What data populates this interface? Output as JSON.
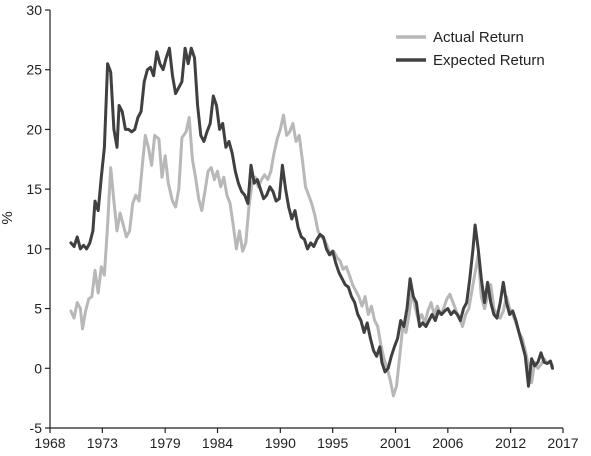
{
  "chart_data": {
    "type": "line",
    "title": "",
    "xlabel": "",
    "ylabel": "%",
    "xlim": [
      1968,
      2017
    ],
    "ylim": [
      -5,
      30
    ],
    "x_ticks": [
      1968,
      1973,
      1979,
      1984,
      1990,
      1995,
      2001,
      2006,
      2012,
      2017
    ],
    "y_ticks": [
      -5,
      0,
      5,
      10,
      15,
      20,
      25,
      30
    ],
    "grid": false,
    "legend": "top-right",
    "colors": {
      "actual": "#b8b8b8",
      "expected": "#404040",
      "axis": "#222222"
    },
    "series": [
      {
        "name": "Actual Return",
        "points": [
          [
            1970.0,
            4.8
          ],
          [
            1970.3,
            4.2
          ],
          [
            1970.6,
            5.5
          ],
          [
            1970.9,
            5.0
          ],
          [
            1971.1,
            3.3
          ],
          [
            1971.4,
            4.8
          ],
          [
            1971.7,
            5.8
          ],
          [
            1972.0,
            6.0
          ],
          [
            1972.3,
            8.2
          ],
          [
            1972.6,
            6.3
          ],
          [
            1972.9,
            8.5
          ],
          [
            1973.2,
            7.8
          ],
          [
            1973.5,
            12.0
          ],
          [
            1973.8,
            16.8
          ],
          [
            1974.1,
            14.0
          ],
          [
            1974.4,
            11.5
          ],
          [
            1974.7,
            13.0
          ],
          [
            1975.0,
            12.0
          ],
          [
            1975.3,
            11.0
          ],
          [
            1975.6,
            11.5
          ],
          [
            1975.9,
            13.8
          ],
          [
            1976.2,
            14.5
          ],
          [
            1976.5,
            14.0
          ],
          [
            1976.8,
            16.8
          ],
          [
            1977.1,
            19.5
          ],
          [
            1977.4,
            18.5
          ],
          [
            1977.7,
            17.0
          ],
          [
            1978.0,
            19.5
          ],
          [
            1978.4,
            19.2
          ],
          [
            1978.7,
            16.0
          ],
          [
            1979.0,
            17.8
          ],
          [
            1979.3,
            15.5
          ],
          [
            1979.7,
            14.0
          ],
          [
            1980.0,
            13.5
          ],
          [
            1980.3,
            15.0
          ],
          [
            1980.6,
            19.3
          ],
          [
            1981.0,
            19.8
          ],
          [
            1981.3,
            21.0
          ],
          [
            1981.6,
            17.5
          ],
          [
            1981.9,
            16.0
          ],
          [
            1982.2,
            14.2
          ],
          [
            1982.5,
            13.2
          ],
          [
            1982.8,
            14.8
          ],
          [
            1983.1,
            16.5
          ],
          [
            1983.4,
            16.8
          ],
          [
            1983.7,
            15.8
          ],
          [
            1984.0,
            16.5
          ],
          [
            1984.3,
            15.2
          ],
          [
            1984.6,
            16.0
          ],
          [
            1984.9,
            14.5
          ],
          [
            1985.2,
            13.8
          ],
          [
            1985.5,
            12.0
          ],
          [
            1985.8,
            10.0
          ],
          [
            1986.1,
            11.5
          ],
          [
            1986.4,
            9.8
          ],
          [
            1986.7,
            10.5
          ],
          [
            1987.0,
            13.5
          ],
          [
            1987.3,
            15.5
          ],
          [
            1987.6,
            16.0
          ],
          [
            1987.9,
            15.2
          ],
          [
            1988.2,
            15.8
          ],
          [
            1988.5,
            16.2
          ],
          [
            1988.8,
            15.8
          ],
          [
            1989.1,
            16.5
          ],
          [
            1989.4,
            18.0
          ],
          [
            1989.7,
            19.2
          ],
          [
            1990.0,
            20.0
          ],
          [
            1990.3,
            21.2
          ],
          [
            1990.6,
            19.5
          ],
          [
            1990.9,
            19.8
          ],
          [
            1991.2,
            20.5
          ],
          [
            1991.5,
            19.0
          ],
          [
            1991.8,
            19.5
          ],
          [
            1992.1,
            17.5
          ],
          [
            1992.4,
            15.2
          ],
          [
            1992.7,
            14.5
          ],
          [
            1993.0,
            13.8
          ],
          [
            1993.3,
            12.8
          ],
          [
            1993.6,
            11.5
          ],
          [
            1993.9,
            11.0
          ],
          [
            1994.2,
            10.8
          ],
          [
            1994.5,
            10.2
          ],
          [
            1994.8,
            9.5
          ],
          [
            1995.1,
            9.8
          ],
          [
            1995.4,
            9.3
          ],
          [
            1995.7,
            9.0
          ],
          [
            1996.0,
            8.3
          ],
          [
            1996.3,
            8.5
          ],
          [
            1996.6,
            7.8
          ],
          [
            1996.9,
            7.0
          ],
          [
            1997.2,
            6.5
          ],
          [
            1997.5,
            6.0
          ],
          [
            1997.8,
            5.2
          ],
          [
            1998.1,
            6.0
          ],
          [
            1998.4,
            4.5
          ],
          [
            1998.7,
            5.2
          ],
          [
            1999.0,
            4.0
          ],
          [
            1999.3,
            3.5
          ],
          [
            1999.6,
            2.0
          ],
          [
            1999.9,
            0.8
          ],
          [
            2000.2,
            0.0
          ],
          [
            2000.5,
            -1.0
          ],
          [
            2000.8,
            -2.3
          ],
          [
            2001.1,
            -1.5
          ],
          [
            2001.4,
            1.0
          ],
          [
            2001.7,
            3.5
          ],
          [
            2002.0,
            3.0
          ],
          [
            2002.3,
            4.5
          ],
          [
            2002.6,
            6.5
          ],
          [
            2002.9,
            5.0
          ],
          [
            2003.2,
            4.0
          ],
          [
            2003.5,
            4.5
          ],
          [
            2003.8,
            3.8
          ],
          [
            2004.1,
            4.8
          ],
          [
            2004.4,
            5.5
          ],
          [
            2004.7,
            4.5
          ],
          [
            2005.0,
            5.2
          ],
          [
            2005.3,
            4.5
          ],
          [
            2005.6,
            5.0
          ],
          [
            2005.9,
            5.8
          ],
          [
            2006.2,
            6.2
          ],
          [
            2006.5,
            5.5
          ],
          [
            2006.8,
            4.8
          ],
          [
            2007.1,
            4.2
          ],
          [
            2007.4,
            3.5
          ],
          [
            2007.7,
            4.5
          ],
          [
            2008.0,
            5.0
          ],
          [
            2008.3,
            6.5
          ],
          [
            2008.6,
            8.0
          ],
          [
            2008.9,
            9.5
          ],
          [
            2009.2,
            6.0
          ],
          [
            2009.5,
            5.0
          ],
          [
            2009.8,
            6.0
          ],
          [
            2010.1,
            7.0
          ],
          [
            2010.4,
            5.0
          ],
          [
            2010.7,
            4.5
          ],
          [
            2011.0,
            4.2
          ],
          [
            2011.3,
            4.8
          ],
          [
            2011.6,
            6.0
          ],
          [
            2011.9,
            5.0
          ],
          [
            2012.2,
            4.5
          ],
          [
            2012.5,
            3.8
          ],
          [
            2012.8,
            3.0
          ],
          [
            2013.1,
            2.5
          ],
          [
            2013.4,
            1.5
          ],
          [
            2013.7,
            0.2
          ],
          [
            2014.0,
            -1.2
          ],
          [
            2014.3,
            0.5
          ],
          [
            2014.6,
            0.0
          ],
          [
            2014.9,
            0.3
          ],
          [
            2015.2,
            0.8
          ],
          [
            2015.5,
            0.4
          ],
          [
            2015.8,
            0.6
          ],
          [
            2016.0,
            0.2
          ]
        ]
      },
      {
        "name": "Expected Return",
        "points": [
          [
            1970.0,
            10.5
          ],
          [
            1970.3,
            10.2
          ],
          [
            1970.6,
            11.0
          ],
          [
            1970.9,
            10.0
          ],
          [
            1971.2,
            10.3
          ],
          [
            1971.5,
            10.0
          ],
          [
            1971.8,
            10.5
          ],
          [
            1972.1,
            11.5
          ],
          [
            1972.3,
            14.0
          ],
          [
            1972.6,
            13.2
          ],
          [
            1972.9,
            16.0
          ],
          [
            1973.2,
            18.5
          ],
          [
            1973.5,
            25.5
          ],
          [
            1973.8,
            24.8
          ],
          [
            1974.1,
            20.0
          ],
          [
            1974.4,
            18.5
          ],
          [
            1974.6,
            22.0
          ],
          [
            1974.9,
            21.5
          ],
          [
            1975.2,
            20.0
          ],
          [
            1975.5,
            20.0
          ],
          [
            1975.8,
            19.8
          ],
          [
            1976.1,
            20.0
          ],
          [
            1976.4,
            21.0
          ],
          [
            1976.7,
            21.5
          ],
          [
            1977.0,
            24.0
          ],
          [
            1977.3,
            25.0
          ],
          [
            1977.6,
            25.2
          ],
          [
            1977.9,
            24.5
          ],
          [
            1978.2,
            26.5
          ],
          [
            1978.5,
            25.5
          ],
          [
            1978.8,
            25.0
          ],
          [
            1979.1,
            26.0
          ],
          [
            1979.4,
            26.8
          ],
          [
            1979.7,
            24.5
          ],
          [
            1980.0,
            23.0
          ],
          [
            1980.3,
            23.5
          ],
          [
            1980.6,
            24.0
          ],
          [
            1980.9,
            26.8
          ],
          [
            1981.2,
            25.5
          ],
          [
            1981.5,
            26.8
          ],
          [
            1981.8,
            26.0
          ],
          [
            1982.1,
            22.0
          ],
          [
            1982.4,
            19.5
          ],
          [
            1982.7,
            19.0
          ],
          [
            1983.0,
            19.8
          ],
          [
            1983.3,
            20.5
          ],
          [
            1983.6,
            22.8
          ],
          [
            1983.9,
            22.0
          ],
          [
            1984.2,
            20.0
          ],
          [
            1984.5,
            20.5
          ],
          [
            1984.8,
            18.5
          ],
          [
            1985.1,
            19.0
          ],
          [
            1985.4,
            18.0
          ],
          [
            1985.7,
            16.5
          ],
          [
            1986.0,
            15.5
          ],
          [
            1986.3,
            14.8
          ],
          [
            1986.6,
            14.5
          ],
          [
            1986.9,
            13.8
          ],
          [
            1987.2,
            17.0
          ],
          [
            1987.5,
            15.5
          ],
          [
            1987.8,
            15.8
          ],
          [
            1988.1,
            15.0
          ],
          [
            1988.4,
            14.2
          ],
          [
            1988.7,
            14.5
          ],
          [
            1989.0,
            15.2
          ],
          [
            1989.3,
            14.8
          ],
          [
            1989.6,
            14.0
          ],
          [
            1989.9,
            14.2
          ],
          [
            1990.2,
            17.0
          ],
          [
            1990.5,
            15.0
          ],
          [
            1990.8,
            13.5
          ],
          [
            1991.1,
            12.5
          ],
          [
            1991.4,
            13.2
          ],
          [
            1991.7,
            11.8
          ],
          [
            1992.0,
            11.0
          ],
          [
            1992.3,
            10.8
          ],
          [
            1992.6,
            10.0
          ],
          [
            1992.9,
            10.5
          ],
          [
            1993.2,
            10.2
          ],
          [
            1993.5,
            10.8
          ],
          [
            1993.8,
            11.2
          ],
          [
            1994.1,
            11.0
          ],
          [
            1994.4,
            10.0
          ],
          [
            1994.7,
            9.5
          ],
          [
            1995.0,
            9.8
          ],
          [
            1995.3,
            8.8
          ],
          [
            1995.6,
            8.0
          ],
          [
            1995.9,
            7.5
          ],
          [
            1996.2,
            7.0
          ],
          [
            1996.5,
            6.8
          ],
          [
            1996.8,
            6.0
          ],
          [
            1997.1,
            5.5
          ],
          [
            1997.4,
            4.5
          ],
          [
            1997.7,
            4.0
          ],
          [
            1998.0,
            3.0
          ],
          [
            1998.3,
            3.8
          ],
          [
            1998.6,
            2.5
          ],
          [
            1998.9,
            1.5
          ],
          [
            1999.2,
            1.0
          ],
          [
            1999.5,
            1.8
          ],
          [
            1999.7,
            0.5
          ],
          [
            2000.0,
            -0.3
          ],
          [
            2000.3,
            0.0
          ],
          [
            2000.6,
            1.0
          ],
          [
            2000.9,
            1.8
          ],
          [
            2001.2,
            2.5
          ],
          [
            2001.5,
            4.0
          ],
          [
            2001.8,
            3.5
          ],
          [
            2002.1,
            5.0
          ],
          [
            2002.4,
            7.5
          ],
          [
            2002.7,
            6.0
          ],
          [
            2003.0,
            5.5
          ],
          [
            2003.3,
            3.5
          ],
          [
            2003.6,
            3.8
          ],
          [
            2003.9,
            3.5
          ],
          [
            2004.2,
            4.0
          ],
          [
            2004.5,
            4.5
          ],
          [
            2004.8,
            4.0
          ],
          [
            2005.1,
            4.8
          ],
          [
            2005.4,
            4.5
          ],
          [
            2005.7,
            4.8
          ],
          [
            2006.0,
            5.0
          ],
          [
            2006.3,
            4.5
          ],
          [
            2006.6,
            4.8
          ],
          [
            2006.9,
            4.5
          ],
          [
            2007.2,
            4.0
          ],
          [
            2007.5,
            5.0
          ],
          [
            2007.8,
            5.5
          ],
          [
            2008.1,
            7.5
          ],
          [
            2008.4,
            10.0
          ],
          [
            2008.6,
            12.0
          ],
          [
            2008.9,
            10.0
          ],
          [
            2009.2,
            7.5
          ],
          [
            2009.5,
            5.5
          ],
          [
            2009.8,
            7.2
          ],
          [
            2010.1,
            5.5
          ],
          [
            2010.4,
            4.5
          ],
          [
            2010.7,
            4.2
          ],
          [
            2011.0,
            5.5
          ],
          [
            2011.3,
            7.2
          ],
          [
            2011.6,
            5.5
          ],
          [
            2011.9,
            4.5
          ],
          [
            2012.2,
            4.8
          ],
          [
            2012.5,
            4.0
          ],
          [
            2012.8,
            3.0
          ],
          [
            2013.1,
            2.0
          ],
          [
            2013.4,
            1.0
          ],
          [
            2013.7,
            -1.5
          ],
          [
            2014.0,
            0.8
          ],
          [
            2014.3,
            0.2
          ],
          [
            2014.6,
            0.5
          ],
          [
            2014.9,
            1.3
          ],
          [
            2015.2,
            0.5
          ],
          [
            2015.5,
            0.4
          ],
          [
            2015.8,
            0.6
          ],
          [
            2016.0,
            0.0
          ]
        ]
      }
    ]
  }
}
